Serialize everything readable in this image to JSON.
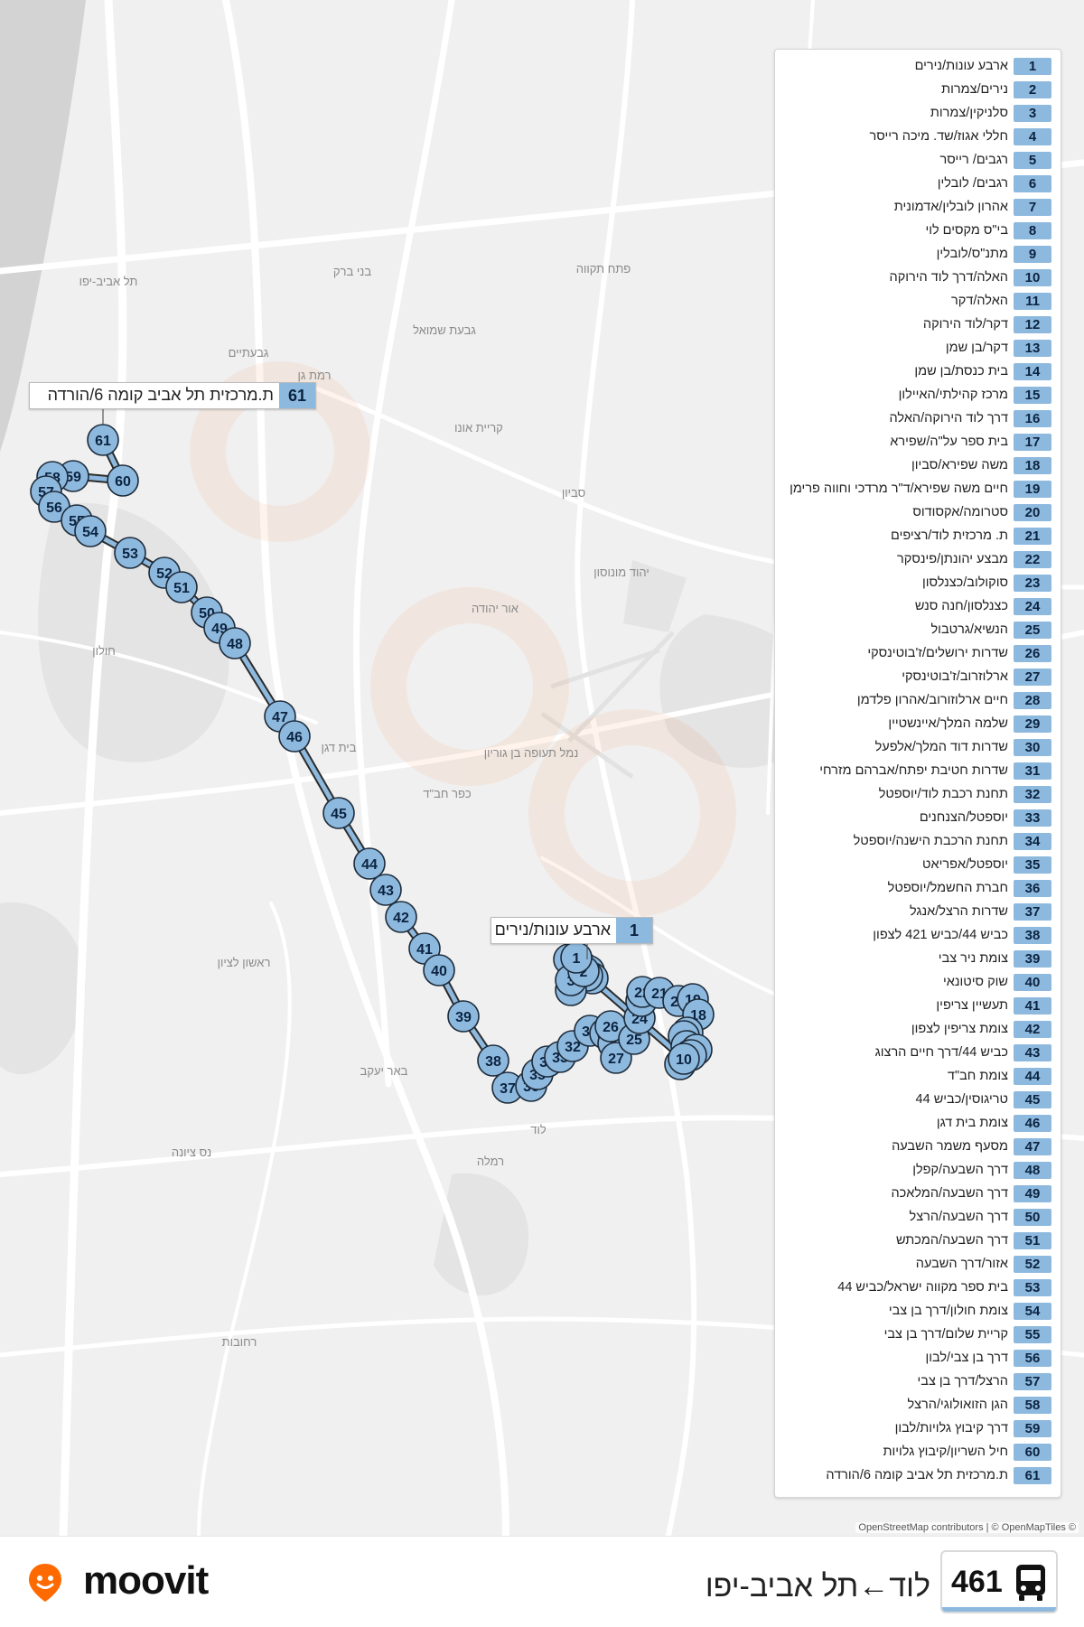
{
  "route": {
    "number": "461",
    "name": "לוד←תל אביב-יפו",
    "color": "#8eb9de"
  },
  "brand": {
    "name": "moovit",
    "color": "#ff6a00"
  },
  "attribution": "OpenStreetMap contributors | © OpenMapTiles ©",
  "map_labels": [
    "תל אביב-יפו",
    "בני ברק",
    "גבעתיים",
    "רמת גן",
    "פתח תקווה",
    "גבעת שמואל",
    "קריית אונו",
    "סביון",
    "יהוד מונוסון",
    "אור יהודה",
    "חולון",
    "בית דגן",
    "ראשון לציון",
    "באר יעקב",
    "רמלה",
    "נס ציונה",
    "רחובות",
    "כפר חב\"ד",
    "נמל תעופה בן גוריון",
    "לוד"
  ],
  "callouts": {
    "start": {
      "num": "1",
      "text": "ארבע עונות/נירים"
    },
    "end": {
      "num": "61",
      "text": "ת.מרכזית תל אביב קומה 6/הורדה"
    }
  },
  "stops": [
    {
      "n": "1",
      "name": "ארבע עונות/נירים"
    },
    {
      "n": "2",
      "name": "נירים/צמרות"
    },
    {
      "n": "3",
      "name": "סלניקין/צמרות"
    },
    {
      "n": "4",
      "name": "חללי אגוז/שד. מיכה רייסר"
    },
    {
      "n": "5",
      "name": "רגבים/ רייסר"
    },
    {
      "n": "6",
      "name": "רגבים/ לובלין"
    },
    {
      "n": "7",
      "name": "אהרון לובלין/אדמונית"
    },
    {
      "n": "8",
      "name": "בי\"ס מקסים לוי"
    },
    {
      "n": "9",
      "name": "מתנ\"ס/לובלין"
    },
    {
      "n": "10",
      "name": "האלה/דרך לוד הירוקה"
    },
    {
      "n": "11",
      "name": "האלה/דקר"
    },
    {
      "n": "12",
      "name": "דקר/לוד הירוקה"
    },
    {
      "n": "13",
      "name": "דקר/בן שמן"
    },
    {
      "n": "14",
      "name": "בית כנסת/בן שמן"
    },
    {
      "n": "15",
      "name": "מרכז קהילתי/האיילון"
    },
    {
      "n": "16",
      "name": "דרך לוד הירוקה/האלה"
    },
    {
      "n": "17",
      "name": "בית ספר על\"ה/שפירא"
    },
    {
      "n": "18",
      "name": "משה שפירא/סביון"
    },
    {
      "n": "19",
      "name": "חיים משה שפירא/ד\"ר מרדכי וחווה פרימן"
    },
    {
      "n": "20",
      "name": "סטרומה/אקסודוס"
    },
    {
      "n": "21",
      "name": "ת. מרכזית לוד/רציפים"
    },
    {
      "n": "22",
      "name": "מבצע יהונתן/פינסקר"
    },
    {
      "n": "23",
      "name": "סוקולוב/כצנלסון"
    },
    {
      "n": "24",
      "name": "כצנלסון/חנה סנש"
    },
    {
      "n": "25",
      "name": "הנשיא/גרטבול"
    },
    {
      "n": "26",
      "name": "שדרות ירושלים/ז'בוטינסקי"
    },
    {
      "n": "27",
      "name": "ארלוזרוב/ז'בוטינסקי"
    },
    {
      "n": "28",
      "name": "חיים ארלוזורוב/אהרון פלדמן"
    },
    {
      "n": "29",
      "name": "שלמה המלך/איינשטיין"
    },
    {
      "n": "30",
      "name": "שדרות דוד המלך/אלפעל"
    },
    {
      "n": "31",
      "name": "שדרות חטיבת יפתח/אברהם מזרחי"
    },
    {
      "n": "32",
      "name": "תחנת רכבת לוד/יוספטל"
    },
    {
      "n": "33",
      "name": "יוספטל/הצנחנים"
    },
    {
      "n": "34",
      "name": "תחנת הרכבת הישנה/יוספטל"
    },
    {
      "n": "35",
      "name": "יוספטל/אפריאט"
    },
    {
      "n": "36",
      "name": "חברת החשמל/יוספטל"
    },
    {
      "n": "37",
      "name": "שדרות הרצל/אנגל"
    },
    {
      "n": "38",
      "name": "כביש 44/כביש 421 לצפון"
    },
    {
      "n": "39",
      "name": "צומת ניר צבי"
    },
    {
      "n": "40",
      "name": "שוק סיטונאי"
    },
    {
      "n": "41",
      "name": "תעשיין צריפין"
    },
    {
      "n": "42",
      "name": "צומת צריפין לצפון"
    },
    {
      "n": "43",
      "name": "כביש 44/דרך חיים הרצוג"
    },
    {
      "n": "44",
      "name": "צומת חב\"ד"
    },
    {
      "n": "45",
      "name": "טריגוסין/כביש 44"
    },
    {
      "n": "46",
      "name": "צומת בית דגן"
    },
    {
      "n": "47",
      "name": "מסעף משמר השבעה"
    },
    {
      "n": "48",
      "name": "דרך השבעה/קפלן"
    },
    {
      "n": "49",
      "name": "דרך השבעה/המלאכה"
    },
    {
      "n": "50",
      "name": "דרך השבעה/הרצל"
    },
    {
      "n": "51",
      "name": "דרך השבעה/המכתש"
    },
    {
      "n": "52",
      "name": "אזור/דרך השבעה"
    },
    {
      "n": "53",
      "name": "בית ספר מקווה ישראל/כביש 44"
    },
    {
      "n": "54",
      "name": "צומת חולון/דרך בן צבי"
    },
    {
      "n": "55",
      "name": "קריית שלום/דרך בן צבי"
    },
    {
      "n": "56",
      "name": "דרך בן צבי/לבון"
    },
    {
      "n": "57",
      "name": "הרצל/דרך בן צבי"
    },
    {
      "n": "58",
      "name": "הגן הזואולוגי/הרצל"
    },
    {
      "n": "59",
      "name": "דרך קיבוץ גלויות/לבון"
    },
    {
      "n": "60",
      "name": "חיל השריון/קיבוץ גלויות"
    },
    {
      "n": "61",
      "name": "ת.מרכזית תל אביב קומה 6/הורדה"
    }
  ]
}
